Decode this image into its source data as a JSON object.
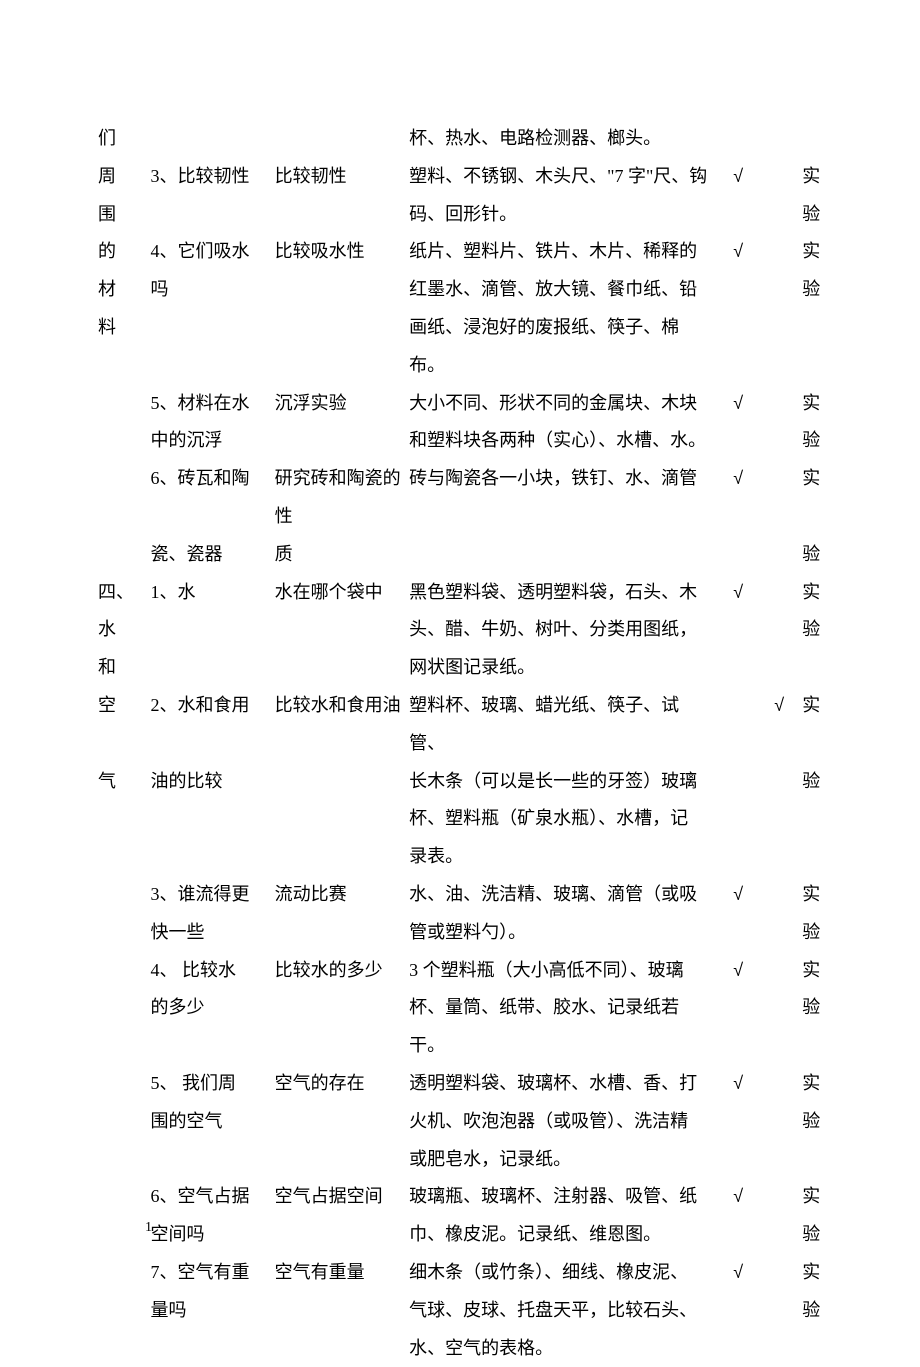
{
  "check_symbol": "√",
  "page_number": "1",
  "rows": [
    {
      "unit": "们",
      "lesson": "",
      "experiment": "",
      "materials": "杯、热水、电路检测器、榔头。",
      "check1": "",
      "check2": "",
      "type": ""
    },
    {
      "unit": "周",
      "lesson": "3、比较韧性",
      "experiment": "比较韧性",
      "materials": "塑料、不锈钢、木头尺、\"7 字\"尺、钩",
      "check1": "√",
      "check2": "",
      "type": "实"
    },
    {
      "unit": "围",
      "lesson": "",
      "experiment": "",
      "materials": "码、回形针。",
      "check1": "",
      "check2": "",
      "type": "验"
    },
    {
      "unit": "的",
      "lesson": "4、它们吸水",
      "experiment": "比较吸水性",
      "materials": "纸片、塑料片、铁片、木片、稀释的",
      "check1": "√",
      "check2": "",
      "type": "实"
    },
    {
      "unit": "材",
      "lesson": "吗",
      "experiment": "",
      "materials": "红墨水、滴管、放大镜、餐巾纸、铅",
      "check1": "",
      "check2": "",
      "type": "验"
    },
    {
      "unit": "料",
      "lesson": "",
      "experiment": "",
      "materials": "画纸、浸泡好的废报纸、筷子、棉布。",
      "check1": "",
      "check2": "",
      "type": ""
    },
    {
      "unit": "",
      "lesson": "5、材料在水",
      "experiment": "沉浮实验",
      "materials": "大小不同、形状不同的金属块、木块",
      "check1": "√",
      "check2": "",
      "type": "实"
    },
    {
      "unit": "",
      "lesson": "中的沉浮",
      "experiment": "",
      "materials": "和塑料块各两种（实心）、水槽、水。",
      "check1": "",
      "check2": "",
      "type": "验"
    },
    {
      "unit": "",
      "lesson": "6、砖瓦和陶",
      "experiment": "研究砖和陶瓷的性",
      "materials": "砖与陶瓷各一小块，铁钉、水、滴管",
      "check1": "√",
      "check2": "",
      "type": "实"
    },
    {
      "unit": "",
      "lesson": "瓷、瓷器",
      "experiment": "质",
      "materials": "",
      "check1": "",
      "check2": "",
      "type": "验"
    },
    {
      "unit": "四、",
      "lesson": "1、水",
      "experiment": "水在哪个袋中",
      "materials": "黑色塑料袋、透明塑料袋，石头、木",
      "check1": "√",
      "check2": "",
      "type": "实"
    },
    {
      "unit": "水",
      "lesson": "",
      "experiment": "",
      "materials": "头、醋、牛奶、树叶、分类用图纸，",
      "check1": "",
      "check2": "",
      "type": "验"
    },
    {
      "unit": "和",
      "lesson": "",
      "experiment": "",
      "materials": "网状图记录纸。",
      "check1": "",
      "check2": "",
      "type": ""
    },
    {
      "unit": "空",
      "lesson": "2、水和食用",
      "experiment": "比较水和食用油",
      "materials": "塑料杯、玻璃、蜡光纸、筷子、试管、",
      "check1": "",
      "check2": "√",
      "type": "实"
    },
    {
      "unit": "气",
      "lesson": "油的比较",
      "experiment": "",
      "materials": "长木条（可以是长一些的牙签）玻璃",
      "check1": "",
      "check2": "",
      "type": "验"
    },
    {
      "unit": "",
      "lesson": "",
      "experiment": "",
      "materials": "杯、塑料瓶（矿泉水瓶）、水槽，记",
      "check1": "",
      "check2": "",
      "type": ""
    },
    {
      "unit": "",
      "lesson": "",
      "experiment": "",
      "materials": "录表。",
      "check1": "",
      "check2": "",
      "type": ""
    },
    {
      "unit": "",
      "lesson": "3、谁流得更",
      "experiment": "流动比赛",
      "materials": "水、油、洗洁精、玻璃、滴管（或吸",
      "check1": "√",
      "check2": "",
      "type": "实"
    },
    {
      "unit": "",
      "lesson": "快一些",
      "experiment": "",
      "materials": "管或塑料勺）。",
      "check1": "",
      "check2": "",
      "type": "验"
    },
    {
      "unit": "",
      "lesson": "4、 比较水",
      "experiment": "比较水的多少",
      "materials": "3 个塑料瓶（大小高低不同）、玻璃",
      "check1": "√",
      "check2": "",
      "type": "实"
    },
    {
      "unit": "",
      "lesson": "的多少",
      "experiment": "",
      "materials": "杯、量筒、纸带、胶水、记录纸若干。",
      "check1": "",
      "check2": "",
      "type": "验"
    },
    {
      "unit": "",
      "lesson": "5、 我们周",
      "experiment": "空气的存在",
      "materials": "透明塑料袋、玻璃杯、水槽、香、打",
      "check1": "√",
      "check2": "",
      "type": "实"
    },
    {
      "unit": "",
      "lesson": "围的空气",
      "experiment": "",
      "materials": "火机、吹泡泡器（或吸管）、洗洁精",
      "check1": "",
      "check2": "",
      "type": "验"
    },
    {
      "unit": "",
      "lesson": "",
      "experiment": "",
      "materials": "或肥皂水，记录纸。",
      "check1": "",
      "check2": "",
      "type": ""
    },
    {
      "unit": "",
      "lesson": "6、空气占据",
      "experiment": "空气占据空间",
      "materials": "玻璃瓶、玻璃杯、注射器、吸管、纸",
      "check1": "√",
      "check2": "",
      "type": "实"
    },
    {
      "unit": "",
      "lesson": "空间吗",
      "experiment": "",
      "materials": "巾、橡皮泥。记录纸、维恩图。",
      "check1": "",
      "check2": "",
      "type": "验"
    },
    {
      "unit": "",
      "lesson": "7、空气有重",
      "experiment": "空气有重量",
      "materials": "细木条（或竹条）、细线、橡皮泥、",
      "check1": "√",
      "check2": "",
      "type": "实"
    },
    {
      "unit": "",
      "lesson": "量吗",
      "experiment": "",
      "materials": "气球、皮球、托盘天平，比较石头、",
      "check1": "",
      "check2": "",
      "type": "验"
    },
    {
      "unit": "",
      "lesson": "",
      "experiment": "",
      "materials": "水、空气的表格。",
      "check1": "",
      "check2": "",
      "type": ""
    }
  ]
}
